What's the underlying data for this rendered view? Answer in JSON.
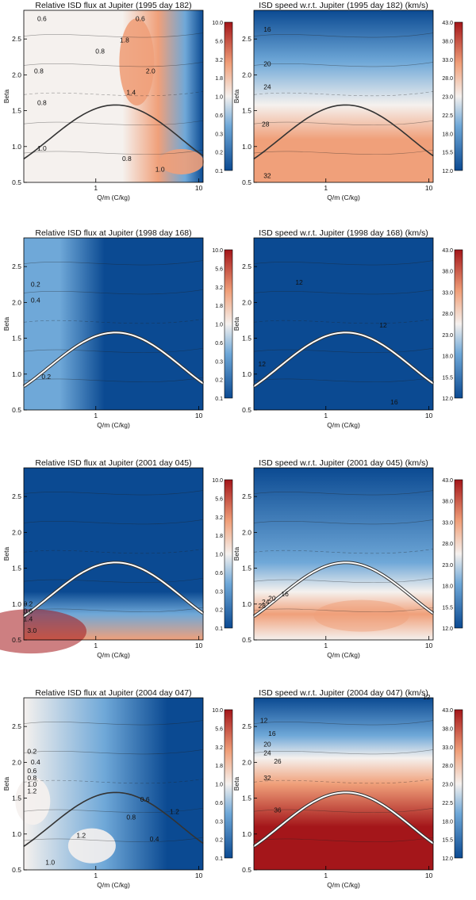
{
  "figure": {
    "ylabel": "Beta",
    "xlabel": "Q/m  (C/kg)",
    "x_tick_labels": [
      "1",
      "10"
    ],
    "y_tick_labels": [
      "0.5",
      "1.0",
      "1.5",
      "2.0",
      "2.5"
    ]
  },
  "colors": {
    "low": "#0b4a92",
    "mid_low": "#6fa8d8",
    "neutral": "#f5f1ee",
    "mid_high": "#f0a07a",
    "high": "#a4161a",
    "contour": "#222222",
    "curve": "#333333"
  },
  "chart_data": [
    {
      "type": "heatmap",
      "title": "Relative ISD flux at Jupiter (1995 day 182)",
      "xlabel": "Q/m  (C/kg)",
      "ylabel": "Beta",
      "xlim": [
        0.2,
        11
      ],
      "ylim": [
        0.5,
        2.9
      ],
      "x_scale": "log",
      "colorbar_ticks": [
        "10.0",
        "5.6",
        "3.2",
        "1.8",
        "1.0",
        "0.6",
        "0.3",
        "0.2",
        "0.1"
      ],
      "contour_labels": [
        {
          "text": "0.6",
          "x": 0.3,
          "y": 2.75
        },
        {
          "text": "0.8",
          "x": 0.28,
          "y": 2.02
        },
        {
          "text": "0.8",
          "x": 0.3,
          "y": 1.58
        },
        {
          "text": "1.0",
          "x": 0.3,
          "y": 0.94
        },
        {
          "text": "0.6",
          "x": 2.7,
          "y": 2.75
        },
        {
          "text": "1.8",
          "x": 1.9,
          "y": 2.45
        },
        {
          "text": "0.8",
          "x": 1.1,
          "y": 2.3
        },
        {
          "text": "2.0",
          "x": 3.4,
          "y": 2.02
        },
        {
          "text": "1.4",
          "x": 2.2,
          "y": 1.72
        },
        {
          "text": "0.8",
          "x": 2.0,
          "y": 0.8
        },
        {
          "text": "1.0",
          "x": 4.2,
          "y": 0.65
        }
      ],
      "curve": "solid"
    },
    {
      "type": "heatmap",
      "title": "ISD speed w.r.t. Jupiter (1995 day 182) (km/s)",
      "xlabel": "Q/m  (C/kg)",
      "ylabel": "Beta",
      "xlim": [
        0.2,
        11
      ],
      "ylim": [
        0.5,
        2.9
      ],
      "x_scale": "log",
      "colorbar_ticks": [
        "43.0",
        "38.0",
        "33.0",
        "28.0",
        "23.0",
        "22.5",
        "18.0",
        "15.5",
        "12.0"
      ],
      "contour_labels": [
        {
          "text": "16",
          "x": 0.27,
          "y": 2.6
        },
        {
          "text": "20",
          "x": 0.27,
          "y": 2.12
        },
        {
          "text": "24",
          "x": 0.27,
          "y": 1.8
        },
        {
          "text": "28",
          "x": 0.26,
          "y": 1.28
        },
        {
          "text": "32",
          "x": 0.27,
          "y": 0.56
        }
      ],
      "curve": "solid"
    },
    {
      "type": "heatmap",
      "title": "Relative ISD flux at Jupiter (1998 day 168)",
      "xlabel": "Q/m  (C/kg)",
      "ylabel": "Beta",
      "xlim": [
        0.2,
        11
      ],
      "ylim": [
        0.5,
        2.9
      ],
      "x_scale": "log",
      "colorbar_ticks": [
        "10.0",
        "5.6",
        "3.2",
        "1.8",
        "1.0",
        "0.6",
        "0.3",
        "0.2",
        "0.1"
      ],
      "contour_labels": [
        {
          "text": "0.2",
          "x": 0.26,
          "y": 2.22
        },
        {
          "text": "0.4",
          "x": 0.26,
          "y": 2.0
        },
        {
          "text": "0.2",
          "x": 0.33,
          "y": 0.93
        }
      ],
      "curve": "double"
    },
    {
      "type": "heatmap",
      "title": "ISD speed w.r.t. Jupiter (1998 day 168) (km/s)",
      "xlabel": "Q/m  (C/kg)",
      "ylabel": "Beta",
      "xlim": [
        0.2,
        11
      ],
      "ylim": [
        0.5,
        2.9
      ],
      "x_scale": "log",
      "colorbar_ticks": [
        "43.0",
        "38.0",
        "33.0",
        "28.0",
        "23.0",
        "18.0",
        "15.5",
        "12.0"
      ],
      "contour_labels": [
        {
          "text": "12",
          "x": 0.55,
          "y": 2.25
        },
        {
          "text": "12",
          "x": 3.6,
          "y": 1.65
        },
        {
          "text": "12",
          "x": 0.24,
          "y": 1.11
        },
        {
          "text": "16",
          "x": 4.6,
          "y": 0.58
        }
      ],
      "curve": "double"
    },
    {
      "type": "heatmap",
      "title": "Relative ISD flux at Jupiter (2001 day 045)",
      "xlabel": "Q/m  (C/kg)",
      "ylabel": "Beta",
      "xlim": [
        0.2,
        11
      ],
      "ylim": [
        0.5,
        2.9
      ],
      "x_scale": "log",
      "colorbar_ticks": [
        "10.0",
        "5.6",
        "3.2",
        "1.8",
        "1.0",
        "0.6",
        "0.3",
        "0.2",
        "0.1"
      ],
      "contour_labels": [
        {
          "text": "0.2",
          "x": 0.22,
          "y": 0.97
        },
        {
          "text": "0.6",
          "x": 0.22,
          "y": 0.87
        },
        {
          "text": "1.4",
          "x": 0.22,
          "y": 0.76
        },
        {
          "text": "3.0",
          "x": 0.24,
          "y": 0.6
        }
      ],
      "curve": "double"
    },
    {
      "type": "heatmap",
      "title": "ISD speed w.r.t. Jupiter (2001 day 045) (km/s)",
      "xlabel": "Q/m  (C/kg)",
      "ylabel": "Beta",
      "xlim": [
        0.2,
        11
      ],
      "ylim": [
        0.5,
        2.9
      ],
      "x_scale": "log",
      "colorbar_ticks": [
        "43.0",
        "38.0",
        "33.0",
        "28.0",
        "23.0",
        "18.0",
        "15.5",
        "12.0"
      ],
      "contour_labels": [
        {
          "text": "16",
          "x": 0.4,
          "y": 1.11
        },
        {
          "text": "20",
          "x": 0.3,
          "y": 1.05
        },
        {
          "text": "24",
          "x": 0.26,
          "y": 1.0
        },
        {
          "text": "28",
          "x": 0.24,
          "y": 0.94
        }
      ],
      "curve": "double"
    },
    {
      "type": "heatmap",
      "title": "Relative ISD flux at Jupiter (2004 day 047)",
      "xlabel": "Q/m  (C/kg)",
      "ylabel": "Beta",
      "xlim": [
        0.2,
        11
      ],
      "ylim": [
        0.5,
        2.9
      ],
      "x_scale": "log",
      "colorbar_ticks": [
        "10.0",
        "5.6",
        "3.2",
        "1.8",
        "1.0",
        "0.6",
        "0.3",
        "0.2",
        "0.1"
      ],
      "contour_labels": [
        {
          "text": "0.2",
          "x": 0.24,
          "y": 2.12
        },
        {
          "text": "0.4",
          "x": 0.26,
          "y": 1.97
        },
        {
          "text": "0.6",
          "x": 0.24,
          "y": 1.85
        },
        {
          "text": "0.8",
          "x": 0.24,
          "y": 1.75
        },
        {
          "text": "1.0",
          "x": 0.24,
          "y": 1.66
        },
        {
          "text": "1.2",
          "x": 0.24,
          "y": 1.57
        },
        {
          "text": "0.6",
          "x": 3.0,
          "y": 1.45
        },
        {
          "text": "0.8",
          "x": 2.2,
          "y": 1.2
        },
        {
          "text": "1.2",
          "x": 5.8,
          "y": 1.28
        },
        {
          "text": "0.4",
          "x": 3.7,
          "y": 0.9
        },
        {
          "text": "1.2",
          "x": 0.72,
          "y": 0.95
        },
        {
          "text": "1.0",
          "x": 0.36,
          "y": 0.57
        }
      ],
      "curve": "solid"
    },
    {
      "type": "heatmap",
      "title": "ISD speed w.r.t. Jupiter (2004 day 047) (km/s)",
      "xlabel": "Q/m  (C/kg)",
      "ylabel": "Beta",
      "xlim": [
        0.2,
        11
      ],
      "ylim": [
        0.5,
        2.9
      ],
      "x_scale": "log",
      "colorbar_ticks": [
        "43.0",
        "38.0",
        "33.0",
        "28.0",
        "23.0",
        "22.5",
        "18.0",
        "15.5",
        "12.0"
      ],
      "contour_labels": [
        {
          "text": "12",
          "x": 9.5,
          "y": 2.88
        },
        {
          "text": "12",
          "x": 0.25,
          "y": 2.55
        },
        {
          "text": "16",
          "x": 0.3,
          "y": 2.37
        },
        {
          "text": "20",
          "x": 0.27,
          "y": 2.22
        },
        {
          "text": "24",
          "x": 0.27,
          "y": 2.1
        },
        {
          "text": "26",
          "x": 0.34,
          "y": 1.98
        },
        {
          "text": "32",
          "x": 0.27,
          "y": 1.75
        },
        {
          "text": "36",
          "x": 0.34,
          "y": 1.3
        }
      ],
      "curve": "double"
    }
  ]
}
